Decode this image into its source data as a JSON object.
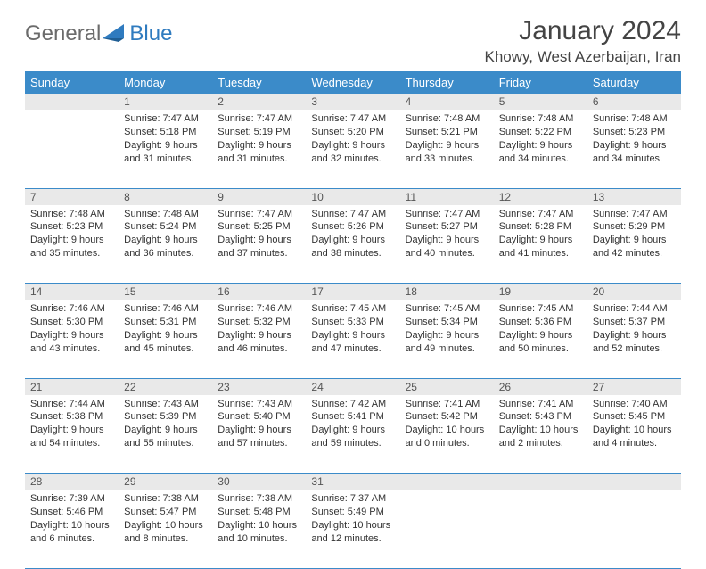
{
  "logo": {
    "text_general": "General",
    "text_blue": "Blue",
    "brand_color": "#2f7bbf",
    "gray": "#6b6b6b"
  },
  "header": {
    "month_title": "January 2024",
    "location": "Khowy, West Azerbaijan, Iran"
  },
  "style": {
    "header_row_bg": "#3b8bc9",
    "header_row_fg": "#ffffff",
    "daynum_bg": "#e9e9e9",
    "daynum_fg": "#555555",
    "cell_border": "#3b8bc9",
    "body_fontsize": 11,
    "header_fontsize": 13
  },
  "day_headers": [
    "Sunday",
    "Monday",
    "Tuesday",
    "Wednesday",
    "Thursday",
    "Friday",
    "Saturday"
  ],
  "weeks": [
    [
      null,
      {
        "n": "1",
        "sr": "7:47 AM",
        "ss": "5:18 PM",
        "dl": "9 hours and 31 minutes."
      },
      {
        "n": "2",
        "sr": "7:47 AM",
        "ss": "5:19 PM",
        "dl": "9 hours and 31 minutes."
      },
      {
        "n": "3",
        "sr": "7:47 AM",
        "ss": "5:20 PM",
        "dl": "9 hours and 32 minutes."
      },
      {
        "n": "4",
        "sr": "7:48 AM",
        "ss": "5:21 PM",
        "dl": "9 hours and 33 minutes."
      },
      {
        "n": "5",
        "sr": "7:48 AM",
        "ss": "5:22 PM",
        "dl": "9 hours and 34 minutes."
      },
      {
        "n": "6",
        "sr": "7:48 AM",
        "ss": "5:23 PM",
        "dl": "9 hours and 34 minutes."
      }
    ],
    [
      {
        "n": "7",
        "sr": "7:48 AM",
        "ss": "5:23 PM",
        "dl": "9 hours and 35 minutes."
      },
      {
        "n": "8",
        "sr": "7:48 AM",
        "ss": "5:24 PM",
        "dl": "9 hours and 36 minutes."
      },
      {
        "n": "9",
        "sr": "7:47 AM",
        "ss": "5:25 PM",
        "dl": "9 hours and 37 minutes."
      },
      {
        "n": "10",
        "sr": "7:47 AM",
        "ss": "5:26 PM",
        "dl": "9 hours and 38 minutes."
      },
      {
        "n": "11",
        "sr": "7:47 AM",
        "ss": "5:27 PM",
        "dl": "9 hours and 40 minutes."
      },
      {
        "n": "12",
        "sr": "7:47 AM",
        "ss": "5:28 PM",
        "dl": "9 hours and 41 minutes."
      },
      {
        "n": "13",
        "sr": "7:47 AM",
        "ss": "5:29 PM",
        "dl": "9 hours and 42 minutes."
      }
    ],
    [
      {
        "n": "14",
        "sr": "7:46 AM",
        "ss": "5:30 PM",
        "dl": "9 hours and 43 minutes."
      },
      {
        "n": "15",
        "sr": "7:46 AM",
        "ss": "5:31 PM",
        "dl": "9 hours and 45 minutes."
      },
      {
        "n": "16",
        "sr": "7:46 AM",
        "ss": "5:32 PM",
        "dl": "9 hours and 46 minutes."
      },
      {
        "n": "17",
        "sr": "7:45 AM",
        "ss": "5:33 PM",
        "dl": "9 hours and 47 minutes."
      },
      {
        "n": "18",
        "sr": "7:45 AM",
        "ss": "5:34 PM",
        "dl": "9 hours and 49 minutes."
      },
      {
        "n": "19",
        "sr": "7:45 AM",
        "ss": "5:36 PM",
        "dl": "9 hours and 50 minutes."
      },
      {
        "n": "20",
        "sr": "7:44 AM",
        "ss": "5:37 PM",
        "dl": "9 hours and 52 minutes."
      }
    ],
    [
      {
        "n": "21",
        "sr": "7:44 AM",
        "ss": "5:38 PM",
        "dl": "9 hours and 54 minutes."
      },
      {
        "n": "22",
        "sr": "7:43 AM",
        "ss": "5:39 PM",
        "dl": "9 hours and 55 minutes."
      },
      {
        "n": "23",
        "sr": "7:43 AM",
        "ss": "5:40 PM",
        "dl": "9 hours and 57 minutes."
      },
      {
        "n": "24",
        "sr": "7:42 AM",
        "ss": "5:41 PM",
        "dl": "9 hours and 59 minutes."
      },
      {
        "n": "25",
        "sr": "7:41 AM",
        "ss": "5:42 PM",
        "dl": "10 hours and 0 minutes."
      },
      {
        "n": "26",
        "sr": "7:41 AM",
        "ss": "5:43 PM",
        "dl": "10 hours and 2 minutes."
      },
      {
        "n": "27",
        "sr": "7:40 AM",
        "ss": "5:45 PM",
        "dl": "10 hours and 4 minutes."
      }
    ],
    [
      {
        "n": "28",
        "sr": "7:39 AM",
        "ss": "5:46 PM",
        "dl": "10 hours and 6 minutes."
      },
      {
        "n": "29",
        "sr": "7:38 AM",
        "ss": "5:47 PM",
        "dl": "10 hours and 8 minutes."
      },
      {
        "n": "30",
        "sr": "7:38 AM",
        "ss": "5:48 PM",
        "dl": "10 hours and 10 minutes."
      },
      {
        "n": "31",
        "sr": "7:37 AM",
        "ss": "5:49 PM",
        "dl": "10 hours and 12 minutes."
      },
      null,
      null,
      null
    ]
  ],
  "labels": {
    "sunrise": "Sunrise:",
    "sunset": "Sunset:",
    "daylight": "Daylight:"
  }
}
